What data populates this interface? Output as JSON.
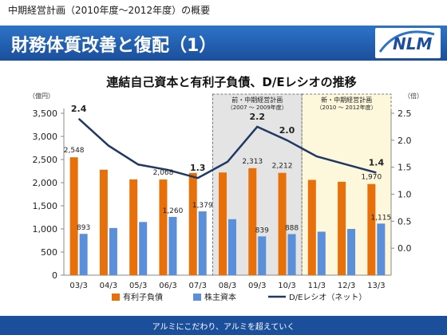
{
  "header": {
    "subtitle": "中期経営計画（2010年度～2012年度）の概要",
    "title": "財務体質改善と復配（1）",
    "logo_text": "NLM"
  },
  "footer": {
    "text": "アルミにこだわり、アルミを超えていく"
  },
  "colors": {
    "debt": "#e8700a",
    "equity": "#5b8fd9",
    "de_ratio": "#1f3864",
    "band": "#1b4f9b",
    "shade_mid": "#e4e4e4",
    "shade_new": "#fdf7dc"
  },
  "chart_data": {
    "type": "bar",
    "title": "連結自己資本と有利子負債、D/Eレシオの推移",
    "y_left_unit": "（億円）",
    "y_right_unit": "（倍）",
    "y_left_lim": [
      0,
      3500
    ],
    "y_left_ticks": [
      "0",
      "500",
      "1,000",
      "1,500",
      "2,000",
      "2,500",
      "3,000",
      "3,500"
    ],
    "y_right_lim": [
      -0.5,
      2.5
    ],
    "y_right_ticks": [
      "0.0",
      "0.5",
      "1.0",
      "1.5",
      "2.0",
      "2.5"
    ],
    "categories": [
      "03/3",
      "04/3",
      "05/3",
      "06/3",
      "07/3",
      "08/3",
      "09/3",
      "10/3",
      "11/3",
      "12/3",
      "13/3"
    ],
    "series": [
      {
        "name": "有利子負債",
        "type": "bar",
        "color": "#e8700a",
        "values": [
          2548,
          2280,
          2070,
          2068,
          2210,
          2220,
          2313,
          2212,
          2060,
          2020,
          1970
        ],
        "labels": [
          "2,548",
          "",
          "",
          "2,068",
          "",
          "",
          "2,313",
          "2,212",
          "",
          "",
          "1,970"
        ]
      },
      {
        "name": "株主資本",
        "type": "bar",
        "color": "#5b8fd9",
        "values": [
          893,
          1020,
          1150,
          1260,
          1379,
          1210,
          839,
          888,
          940,
          1000,
          1115
        ],
        "labels": [
          "893",
          "",
          "",
          "1,260",
          "1,379",
          "",
          "839",
          "888",
          "",
          "",
          "1,115"
        ]
      },
      {
        "name": "D/Eレシオ（ネット）",
        "type": "line",
        "axis": "right",
        "color": "#1f3864",
        "values": [
          2.4,
          1.9,
          1.55,
          1.45,
          1.3,
          1.6,
          2.25,
          2.0,
          1.7,
          1.55,
          1.4
        ],
        "labels": [
          "2.4",
          "",
          "",
          "",
          "1.3",
          "",
          "2.2",
          "2.0",
          "",
          "",
          "1.4"
        ]
      }
    ],
    "periods": [
      {
        "label": "前・中期経営計画",
        "sublabel": "（2007 ～ 2009年度）",
        "from": 5,
        "to": 7,
        "shade": "mid"
      },
      {
        "label": "新・中期経営計画",
        "sublabel": "（2010 ～ 2012年度）",
        "from": 8,
        "to": 10,
        "shade": "new"
      }
    ],
    "legend_position": "bottom",
    "grid": false
  }
}
